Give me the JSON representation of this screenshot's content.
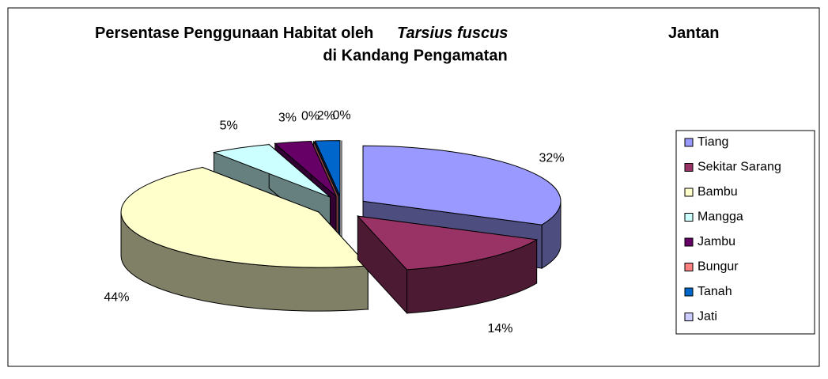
{
  "chart_data": {
    "type": "pie3d",
    "title": [
      "Persentase Penggunaan Habitat oleh",
      "Tarsius fuscus",
      "Jantan",
      "di Kandang Pengamatan"
    ],
    "categories": [
      "Tiang",
      "Sekitar Sarang",
      "Bambu",
      "Mangga",
      "Jambu",
      "Bungur",
      "Tanah",
      "Jati"
    ],
    "values": [
      32,
      14,
      44,
      5,
      3,
      0,
      2,
      0
    ],
    "value_labels": [
      "32%",
      "14%",
      "44%",
      "5%",
      "3%",
      "0%",
      "2%",
      "0%"
    ],
    "colors": [
      "#9999ff",
      "#993366",
      "#ffffcc",
      "#ccffff",
      "#660066",
      "#ff8080",
      "#0066cc",
      "#ccccff"
    ],
    "legend": "right",
    "exploded": true
  }
}
